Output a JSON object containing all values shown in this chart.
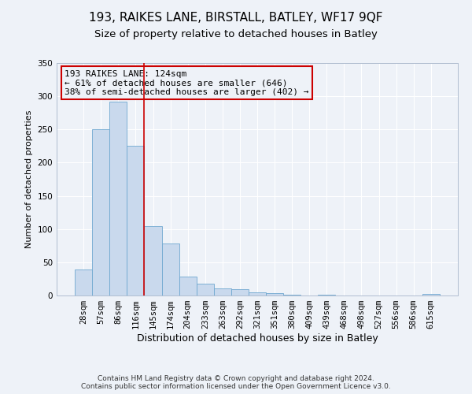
{
  "title": "193, RAIKES LANE, BIRSTALL, BATLEY, WF17 9QF",
  "subtitle": "Size of property relative to detached houses in Batley",
  "xlabel": "Distribution of detached houses by size in Batley",
  "ylabel": "Number of detached properties",
  "bar_labels": [
    "28sqm",
    "57sqm",
    "86sqm",
    "116sqm",
    "145sqm",
    "174sqm",
    "204sqm",
    "233sqm",
    "263sqm",
    "292sqm",
    "321sqm",
    "351sqm",
    "380sqm",
    "409sqm",
    "439sqm",
    "468sqm",
    "498sqm",
    "527sqm",
    "556sqm",
    "586sqm",
    "615sqm"
  ],
  "bar_values": [
    39,
    250,
    292,
    225,
    104,
    78,
    29,
    18,
    11,
    9,
    5,
    4,
    1,
    0,
    1,
    0,
    0,
    0,
    0,
    0,
    2
  ],
  "bar_color": "#c9d9ed",
  "bar_edge_color": "#6fa8d0",
  "red_line_index": 3,
  "annotation_title": "193 RAIKES LANE: 124sqm",
  "annotation_line1": "← 61% of detached houses are smaller (646)",
  "annotation_line2": "38% of semi-detached houses are larger (402) →",
  "annotation_box_edge": "#cc0000",
  "red_line_color": "#cc0000",
  "ylim": [
    0,
    350
  ],
  "yticks": [
    0,
    50,
    100,
    150,
    200,
    250,
    300,
    350
  ],
  "footer_line1": "Contains HM Land Registry data © Crown copyright and database right 2024.",
  "footer_line2": "Contains public sector information licensed under the Open Government Licence v3.0.",
  "background_color": "#eef2f8",
  "grid_color": "#ffffff",
  "title_fontsize": 11,
  "subtitle_fontsize": 9.5,
  "ylabel_fontsize": 8,
  "xlabel_fontsize": 9,
  "tick_fontsize": 7.5,
  "annotation_fontsize": 8,
  "footer_fontsize": 6.5
}
